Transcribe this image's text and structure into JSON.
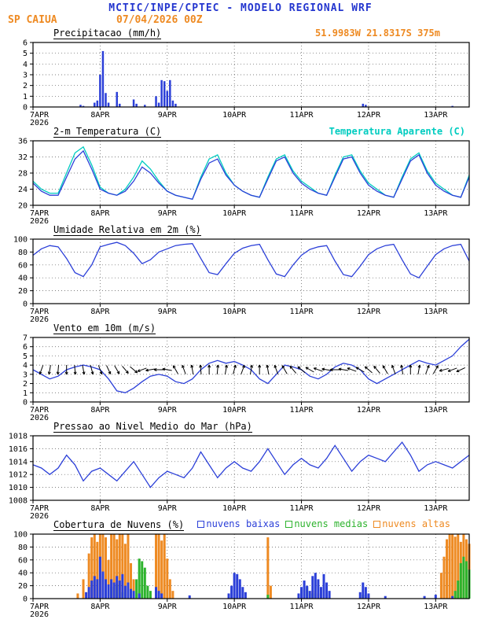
{
  "header": {
    "title": "MCTIC/INPE/CPTEC - MODELO REGIONAL WRF",
    "station": "SP CAIUA",
    "run": "07/04/2026 00Z",
    "location": "51.9983W 21.8317S 375m"
  },
  "colors": {
    "blue": "#2b3fd8",
    "cyan": "#00ccc0",
    "orange": "#ee8a22",
    "green": "#2db32d",
    "grid": "#555555",
    "axis": "#000000",
    "title_blue": "#2436cf"
  },
  "axis": {
    "hours_total": 156,
    "day_tick_hours": [
      0,
      24,
      48,
      72,
      96,
      120,
      144
    ],
    "x_labels": [
      "7APR",
      "8APR",
      "9APR",
      "10APR",
      "11APR",
      "12APR",
      "13APR"
    ],
    "year_label": "2026"
  },
  "chart_data": [
    {
      "id": "precip",
      "type": "bar",
      "title": "Precipitacao (mm/h)",
      "ylim": [
        0,
        6
      ],
      "yticks": [
        0,
        1,
        2,
        3,
        4,
        5,
        6
      ],
      "bars": [
        {
          "name": "Precipitacao",
          "color": "blue",
          "width": 2.5,
          "points": [
            [
              17,
              0.2
            ],
            [
              18,
              0.1
            ],
            [
              22,
              0.4
            ],
            [
              23,
              0.6
            ],
            [
              24,
              3.0
            ],
            [
              25,
              5.2
            ],
            [
              26,
              1.3
            ],
            [
              27,
              0.4
            ],
            [
              30,
              1.4
            ],
            [
              31,
              0.3
            ],
            [
              36,
              0.7
            ],
            [
              37,
              0.3
            ],
            [
              40,
              0.2
            ],
            [
              44,
              1.0
            ],
            [
              45,
              0.4
            ],
            [
              46,
              2.5
            ],
            [
              47,
              2.4
            ],
            [
              48,
              1.5
            ],
            [
              49,
              2.5
            ],
            [
              50,
              0.6
            ],
            [
              51,
              0.3
            ],
            [
              118,
              0.3
            ],
            [
              119,
              0.2
            ],
            [
              150,
              0.1
            ]
          ]
        }
      ]
    },
    {
      "id": "temp2m",
      "type": "line",
      "title": "2-m Temperatura (C)",
      "legend": "Temperatura Aparente (C)",
      "ylim": [
        20,
        36
      ],
      "yticks": [
        20,
        24,
        28,
        32,
        36
      ],
      "step_hours": 3,
      "series": [
        {
          "name": "Temperatura Aparente (C)",
          "color": "cyan",
          "values": [
            26,
            24,
            23,
            23,
            28,
            33,
            34.5,
            30,
            24.5,
            23,
            22.5,
            24,
            27,
            31,
            29,
            26,
            23.5,
            22.5,
            22,
            21.5,
            27,
            31.5,
            32.5,
            28,
            25,
            23.5,
            22.5,
            22,
            27,
            31.5,
            32.5,
            28.5,
            26,
            24.5,
            23,
            22.5,
            27.5,
            32,
            32.5,
            28.5,
            25.5,
            24,
            22.5,
            22,
            27,
            31.5,
            33,
            28.5,
            25.5,
            24,
            22.5,
            22,
            27.5
          ]
        },
        {
          "name": "2-m Temperatura (C)",
          "color": "blue",
          "values": [
            25.5,
            23.5,
            22.5,
            22.5,
            27,
            31.5,
            33.5,
            29,
            24,
            23,
            22.5,
            23.5,
            26,
            29.5,
            28,
            25.5,
            23.5,
            22.5,
            22,
            21.5,
            26.5,
            30.5,
            31.5,
            27.5,
            25,
            23.5,
            22.5,
            22,
            26.5,
            31,
            32,
            28,
            25.5,
            24,
            23,
            22.5,
            27,
            31.5,
            32,
            28,
            25,
            23.5,
            22.5,
            22,
            26.5,
            31,
            32.5,
            28,
            25,
            23.5,
            22.5,
            22,
            27
          ]
        }
      ]
    },
    {
      "id": "rh2m",
      "type": "line",
      "title": "Umidade Relativa em 2m (%)",
      "ylim": [
        0,
        100
      ],
      "yticks": [
        0,
        20,
        40,
        60,
        80,
        100
      ],
      "step_hours": 3,
      "series": [
        {
          "name": "Umidade Relativa",
          "color": "blue",
          "values": [
            75,
            85,
            90,
            88,
            70,
            48,
            42,
            60,
            88,
            92,
            95,
            90,
            78,
            62,
            68,
            80,
            85,
            90,
            92,
            93,
            70,
            48,
            45,
            62,
            78,
            86,
            90,
            92,
            68,
            46,
            42,
            60,
            75,
            84,
            88,
            90,
            66,
            45,
            42,
            58,
            76,
            85,
            90,
            92,
            68,
            46,
            40,
            58,
            76,
            85,
            90,
            92,
            66
          ]
        }
      ]
    },
    {
      "id": "wind10m",
      "type": "line",
      "title": "Vento em 10m (m/s)",
      "ylim": [
        0,
        7
      ],
      "yticks": [
        0,
        1,
        2,
        3,
        4,
        5,
        6,
        7
      ],
      "step_hours": 3,
      "series": [
        {
          "name": "Velocidade do vento",
          "color": "blue",
          "values": [
            3.5,
            3,
            2.5,
            2.8,
            3.5,
            3.8,
            4,
            3.8,
            3.5,
            2.5,
            1.2,
            1,
            1.5,
            2.2,
            2.8,
            3,
            2.8,
            2.2,
            2,
            2.5,
            3.5,
            4.2,
            4.5,
            4.2,
            4.4,
            4,
            3.5,
            2.5,
            2,
            3,
            4,
            3.8,
            3.5,
            2.8,
            2.5,
            3,
            3.8,
            4.2,
            4,
            3.5,
            2.5,
            2,
            2.5,
            3,
            3.5,
            4,
            4.5,
            4.2,
            4,
            4.5,
            5,
            6,
            6.8
          ]
        }
      ],
      "barbs": {
        "y_value": 3.5,
        "step_hours": 3,
        "angles": [
          250,
          260,
          265,
          270,
          275,
          280,
          285,
          290,
          295,
          300,
          310,
          320,
          200,
          190,
          180,
          170,
          120,
          110,
          100,
          95,
          90,
          85,
          80,
          75,
          70,
          80,
          90,
          100,
          110,
          120,
          130,
          140,
          150,
          160,
          170,
          180,
          170,
          160,
          150,
          140,
          130,
          120,
          110,
          100,
          90,
          80,
          70,
          60,
          195,
          200,
          205
        ]
      }
    },
    {
      "id": "slp",
      "type": "line",
      "title": "Pressao ao Nivel Medio do Mar (hPa)",
      "ylim": [
        1008,
        1018
      ],
      "yticks": [
        1008,
        1010,
        1012,
        1014,
        1016,
        1018
      ],
      "step_hours": 3,
      "series": [
        {
          "name": "Pressao ao nivel medio do mar",
          "color": "blue",
          "values": [
            1013.5,
            1013,
            1012,
            1013,
            1015,
            1013.5,
            1011,
            1012.5,
            1013,
            1012,
            1011,
            1012.5,
            1014,
            1012,
            1010,
            1011.5,
            1012.5,
            1012,
            1011.5,
            1013,
            1015.5,
            1013.5,
            1011.5,
            1013,
            1014,
            1013,
            1012.5,
            1014,
            1016,
            1014,
            1012,
            1013.5,
            1014.5,
            1013.5,
            1013,
            1014.5,
            1016.5,
            1014.5,
            1012.5,
            1014,
            1015,
            1014.5,
            1014,
            1015.5,
            1017,
            1015,
            1012.5,
            1013.5,
            1014,
            1013.5,
            1013,
            1014,
            1015
          ]
        }
      ]
    },
    {
      "id": "clouds",
      "type": "bar",
      "title": "Cobertura de Nuvens (%)",
      "legend_items": [
        {
          "label": "nuvens baixas",
          "color": "blue"
        },
        {
          "label": "nuvens medias",
          "color": "green"
        },
        {
          "label": "nuvens altas",
          "color": "orange"
        }
      ],
      "ylim": [
        0,
        100
      ],
      "yticks": [
        0,
        20,
        40,
        60,
        80,
        100
      ],
      "bars": [
        {
          "name": "nuvens altas",
          "color": "orange",
          "width": 3,
          "points": [
            [
              16,
              8
            ],
            [
              18,
              30
            ],
            [
              20,
              70
            ],
            [
              21,
              95
            ],
            [
              22,
              100
            ],
            [
              23,
              88
            ],
            [
              24,
              100
            ],
            [
              25,
              100
            ],
            [
              26,
              95
            ],
            [
              27,
              60
            ],
            [
              28,
              100
            ],
            [
              29,
              100
            ],
            [
              30,
              92
            ],
            [
              31,
              100
            ],
            [
              32,
              100
            ],
            [
              33,
              85
            ],
            [
              34,
              100
            ],
            [
              35,
              55
            ],
            [
              36,
              30
            ],
            [
              44,
              100
            ],
            [
              45,
              100
            ],
            [
              46,
              90
            ],
            [
              47,
              100
            ],
            [
              48,
              62
            ],
            [
              49,
              30
            ],
            [
              50,
              12
            ],
            [
              84,
              95
            ],
            [
              85,
              20
            ],
            [
              100,
              12
            ],
            [
              102,
              8
            ],
            [
              120,
              5
            ],
            [
              146,
              40
            ],
            [
              147,
              65
            ],
            [
              148,
              92
            ],
            [
              149,
              100
            ],
            [
              150,
              100
            ],
            [
              151,
              96
            ],
            [
              152,
              100
            ],
            [
              153,
              88
            ],
            [
              154,
              100
            ],
            [
              155,
              92
            ],
            [
              156,
              85
            ]
          ]
        },
        {
          "name": "nuvens medias",
          "color": "green",
          "width": 3,
          "points": [
            [
              28,
              18
            ],
            [
              30,
              22
            ],
            [
              32,
              10
            ],
            [
              37,
              30
            ],
            [
              38,
              62
            ],
            [
              39,
              58
            ],
            [
              40,
              48
            ],
            [
              41,
              20
            ],
            [
              42,
              12
            ],
            [
              84,
              6
            ],
            [
              96,
              14
            ],
            [
              98,
              18
            ],
            [
              100,
              8
            ],
            [
              118,
              6
            ],
            [
              151,
              12
            ],
            [
              152,
              28
            ],
            [
              153,
              55
            ],
            [
              154,
              65
            ],
            [
              155,
              58
            ],
            [
              156,
              45
            ]
          ]
        },
        {
          "name": "nuvens baixas",
          "color": "blue",
          "width": 3,
          "points": [
            [
              19,
              10
            ],
            [
              20,
              18
            ],
            [
              21,
              28
            ],
            [
              22,
              35
            ],
            [
              23,
              30
            ],
            [
              24,
              65
            ],
            [
              25,
              42
            ],
            [
              26,
              30
            ],
            [
              27,
              22
            ],
            [
              28,
              30
            ],
            [
              29,
              25
            ],
            [
              30,
              35
            ],
            [
              31,
              28
            ],
            [
              32,
              38
            ],
            [
              33,
              20
            ],
            [
              34,
              25
            ],
            [
              35,
              15
            ],
            [
              36,
              12
            ],
            [
              38,
              8
            ],
            [
              44,
              18
            ],
            [
              45,
              12
            ],
            [
              46,
              8
            ],
            [
              56,
              5
            ],
            [
              70,
              8
            ],
            [
              71,
              20
            ],
            [
              72,
              40
            ],
            [
              73,
              38
            ],
            [
              74,
              30
            ],
            [
              75,
              18
            ],
            [
              76,
              10
            ],
            [
              95,
              8
            ],
            [
              96,
              18
            ],
            [
              97,
              28
            ],
            [
              98,
              20
            ],
            [
              99,
              12
            ],
            [
              100,
              35
            ],
            [
              101,
              40
            ],
            [
              102,
              30
            ],
            [
              103,
              18
            ],
            [
              104,
              38
            ],
            [
              105,
              25
            ],
            [
              106,
              12
            ],
            [
              117,
              10
            ],
            [
              118,
              25
            ],
            [
              119,
              18
            ],
            [
              120,
              8
            ],
            [
              126,
              4
            ],
            [
              140,
              4
            ],
            [
              144,
              6
            ],
            [
              150,
              4
            ]
          ]
        }
      ]
    }
  ]
}
